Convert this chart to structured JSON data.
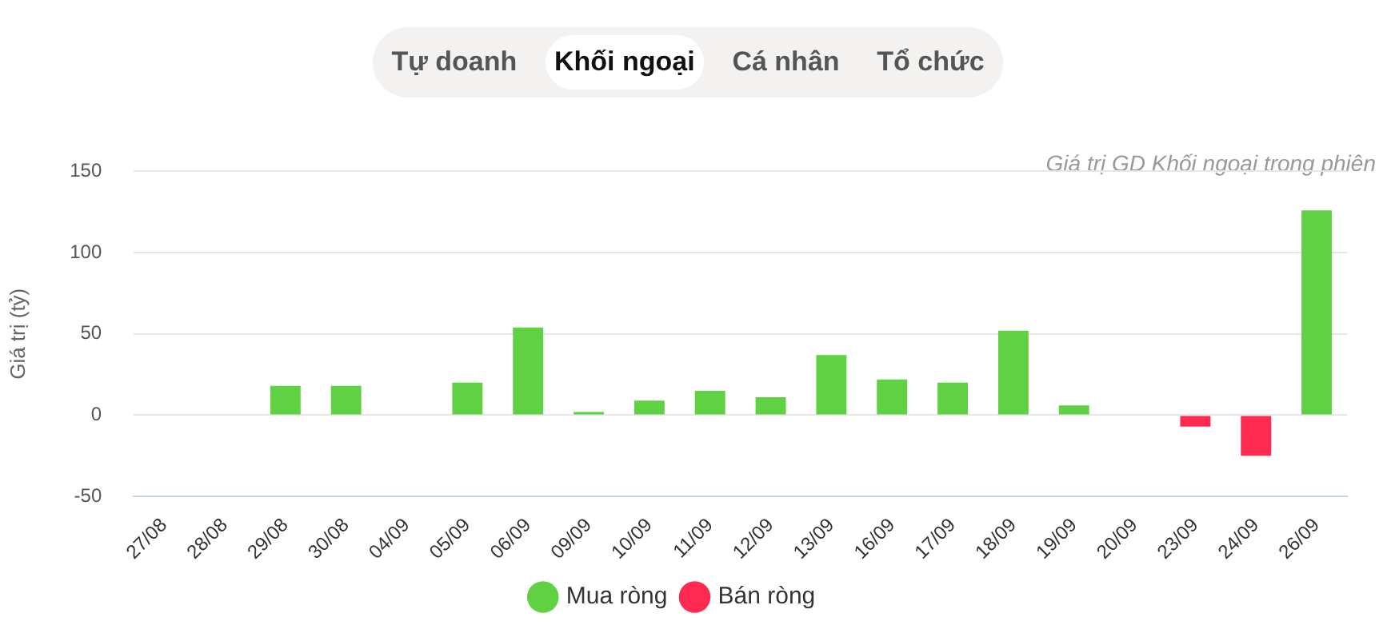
{
  "chart_data": {
    "type": "bar",
    "subtitle": "Giá trị GD Khối ngoại trong phiên",
    "ylabel": "Giá trị (tỷ)",
    "annotations": [
      "Tự doanh",
      "Khối ngoại",
      "Cá nhân",
      "Tổ chức"
    ],
    "categories": [
      "27/08",
      "28/08",
      "29/08",
      "30/08",
      "04/09",
      "05/09",
      "06/09",
      "09/09",
      "10/09",
      "11/09",
      "12/09",
      "13/09",
      "16/09",
      "17/09",
      "18/09",
      "19/09",
      "20/09",
      "23/09",
      "24/09",
      "26/09"
    ],
    "series": [
      {
        "name": "Mua ròng",
        "color": "#5fd142",
        "values": [
          null,
          null,
          18,
          18,
          null,
          20,
          54,
          2,
          9,
          15,
          11,
          37,
          22,
          20,
          52,
          6,
          null,
          null,
          null,
          126
        ]
      },
      {
        "name": "Bán ròng",
        "color": "#ff2a4f",
        "values": [
          null,
          null,
          null,
          null,
          null,
          null,
          null,
          null,
          null,
          null,
          null,
          null,
          null,
          null,
          null,
          null,
          null,
          -7,
          -25,
          null
        ]
      }
    ],
    "stacked": true,
    "ylim": [
      -50,
      150
    ],
    "yticks": [
      -50,
      0,
      50,
      100,
      150
    ],
    "grid": "y",
    "legend": "bottom"
  }
}
